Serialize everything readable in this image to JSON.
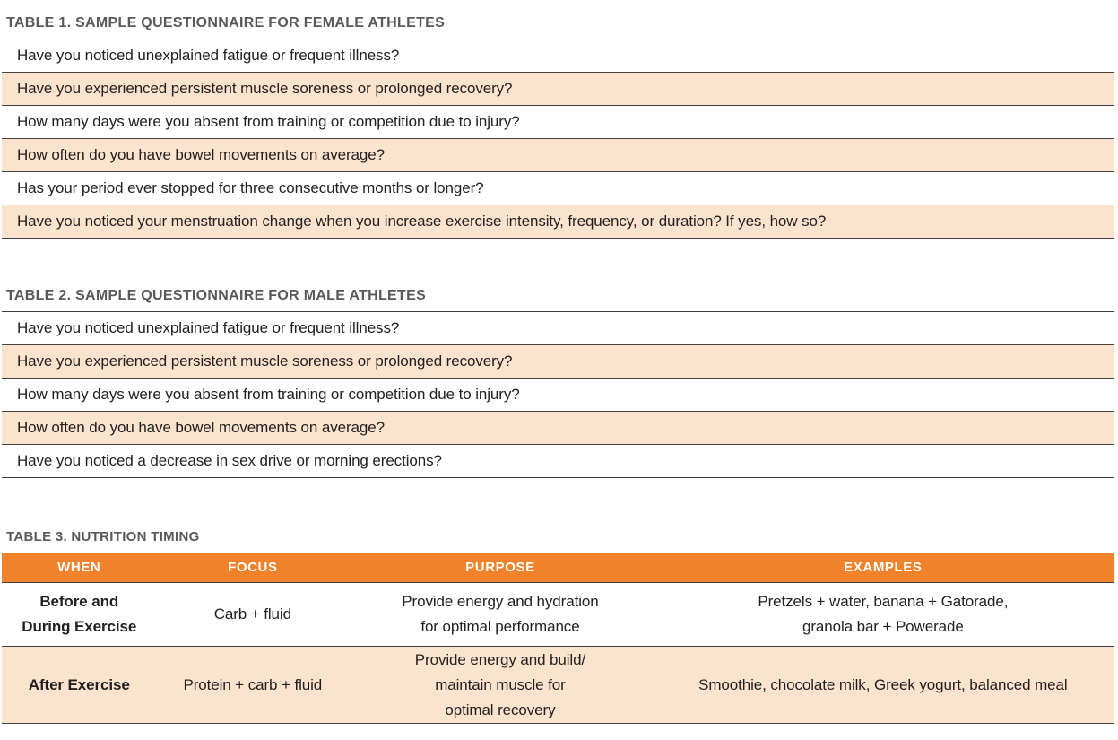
{
  "colors": {
    "accent_orange": "#F0822C",
    "row_peach": "#FBE3CE",
    "title_gray": "#58595B",
    "rule_dark": "#414042",
    "text_dark": "#231F20",
    "header_text": "#FFFFFF"
  },
  "table1": {
    "title": "TABLE 1. SAMPLE QUESTIONNAIRE FOR FEMALE ATHLETES",
    "rows": [
      "Have you noticed unexplained fatigue or frequent illness?",
      "Have you experienced persistent muscle soreness or prolonged recovery?",
      "How many days were you absent from training or competition due to injury?",
      "How often do you have bowel movements on average?",
      "Has your period ever stopped for three consecutive months or longer?",
      "Have you noticed your menstruation change when you increase exercise intensity, frequency, or duration? If yes, how so?"
    ]
  },
  "table2": {
    "title": "TABLE 2. SAMPLE QUESTIONNAIRE FOR MALE ATHLETES",
    "rows": [
      "Have you noticed unexplained fatigue or frequent illness?",
      "Have you experienced persistent muscle soreness or prolonged recovery?",
      "How many days were you absent from training or competition due to injury?",
      "How often do you have bowel movements on average?",
      "Have you noticed a decrease in sex drive or morning erections?"
    ]
  },
  "table3": {
    "title": "TABLE 3. NUTRITION TIMING",
    "columns": [
      "WHEN",
      "FOCUS",
      "PURPOSE",
      "EXAMPLES"
    ],
    "rows": [
      {
        "when": "Before and\nDuring Exercise",
        "focus": "Carb + fluid",
        "purpose": "Provide energy and hydration\nfor optimal performance",
        "examples": "Pretzels + water, banana + Gatorade,\ngranola bar + Powerade"
      },
      {
        "when": "After Exercise",
        "focus": "Protein + carb + fluid",
        "purpose": "Provide energy and build/\nmaintain muscle for\noptimal recovery",
        "examples": "Smoothie, chocolate milk, Greek yogurt, balanced meal"
      }
    ]
  }
}
